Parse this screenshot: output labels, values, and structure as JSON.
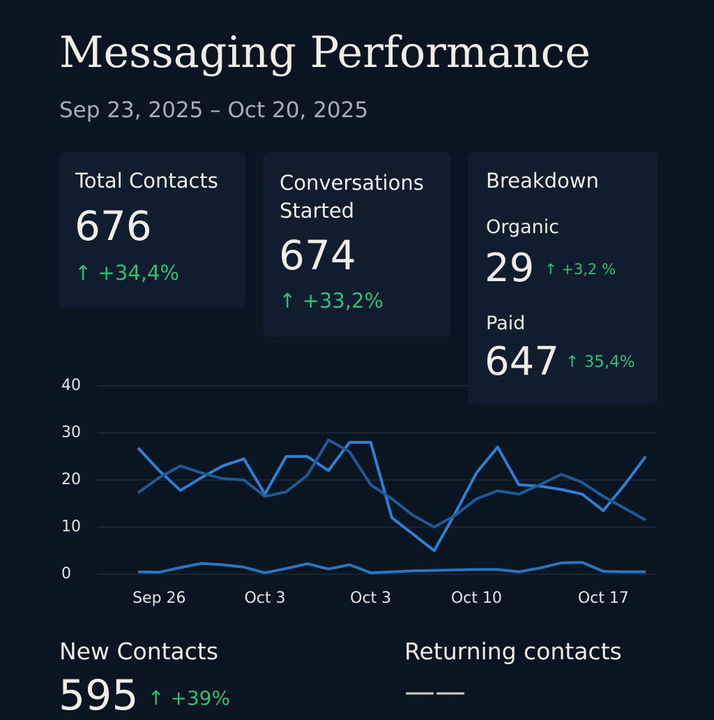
{
  "header": {
    "title": "Messaging Performance",
    "subtitle": "Sep 23, 2025 – Oct 20, 2025"
  },
  "cards": [
    {
      "title": "Total Contacts",
      "value": "676",
      "change": "+34,4%"
    },
    {
      "title": "Conversations Started",
      "value": "674",
      "change": "+33,2%"
    },
    {
      "title": "Breakdown",
      "items": [
        {
          "label": "Organic",
          "value": "29",
          "change": "+3,2 %"
        },
        {
          "label": "Paid",
          "value": "647",
          "change": "35,4%"
        }
      ]
    }
  ],
  "chart_data": {
    "type": "line",
    "categories": [
      null,
      "Sep 26",
      null,
      null,
      null,
      null,
      "Oct 3",
      null,
      null,
      null,
      null,
      "Oct 3",
      null,
      null,
      null,
      null,
      "Oct 10",
      null,
      null,
      null,
      null,
      null,
      "Oct 17",
      null,
      null
    ],
    "series": [
      {
        "color": "#2f80d4",
        "values": [
          26.8,
          22,
          17.8,
          20.5,
          23,
          24.5,
          17,
          25,
          25,
          22,
          28,
          28,
          12,
          8.5,
          5,
          13,
          21.5,
          27,
          19,
          18.7,
          18,
          17,
          13.5,
          19,
          25
        ]
      },
      {
        "color": "#1f5a96",
        "values": [
          17.3,
          20.5,
          23,
          21.5,
          20.3,
          20,
          16.5,
          17.5,
          21,
          28.5,
          26,
          19,
          16,
          12.5,
          10,
          12.5,
          16,
          17.7,
          17,
          19,
          21.2,
          19.5,
          16.5,
          14,
          11.5
        ]
      },
      {
        "color": "#2a74bf",
        "values": [
          0.5,
          0.4,
          1.4,
          2.3,
          2,
          1.5,
          0.3,
          1.2,
          2.2,
          1.1,
          2,
          0.3,
          0.5,
          0.7,
          0.8,
          0.9,
          1,
          1,
          0.5,
          1.3,
          2.4,
          2.5,
          0.6,
          0.5,
          0.5
        ]
      }
    ],
    "ylim": [
      0,
      40
    ],
    "yticks": [
      0,
      10,
      20,
      30,
      40
    ],
    "grid": true
  },
  "bottom": [
    {
      "title": "New Contacts",
      "value": "595",
      "change": "+39%"
    },
    {
      "title": "Returning contacts",
      "value": "——"
    }
  ]
}
